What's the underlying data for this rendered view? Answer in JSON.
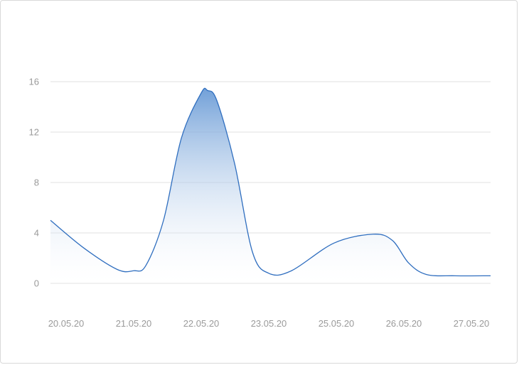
{
  "chart_data": {
    "type": "area",
    "title": "",
    "xlabel": "",
    "ylabel": "",
    "grid": true,
    "legend": "none",
    "ylim": [
      0,
      16
    ],
    "y_ticks": [
      "0",
      "4",
      "8",
      "12",
      "16"
    ],
    "x_ticks": [
      "20.05.20",
      "21.05.20",
      "22.05.20",
      "23.05.20",
      "25.05.20",
      "26.05.20",
      "27.05.20"
    ],
    "series": [
      {
        "x": [
          "20.05.20",
          "21.05.20",
          "22.05.20",
          "23.05.20",
          "25.05.20",
          "26.05.20",
          "27.05.20"
        ],
        "values": [
          5,
          1,
          15.3,
          0.8,
          3.9,
          0.6,
          0.6
        ]
      }
    ],
    "colors": {
      "line": "#2f6ebf",
      "fill_top": "#6a9bd6",
      "fill_bottom": "#ffffff",
      "grid": "#e0e0e0",
      "tick_text": "#9a9a9a"
    }
  }
}
